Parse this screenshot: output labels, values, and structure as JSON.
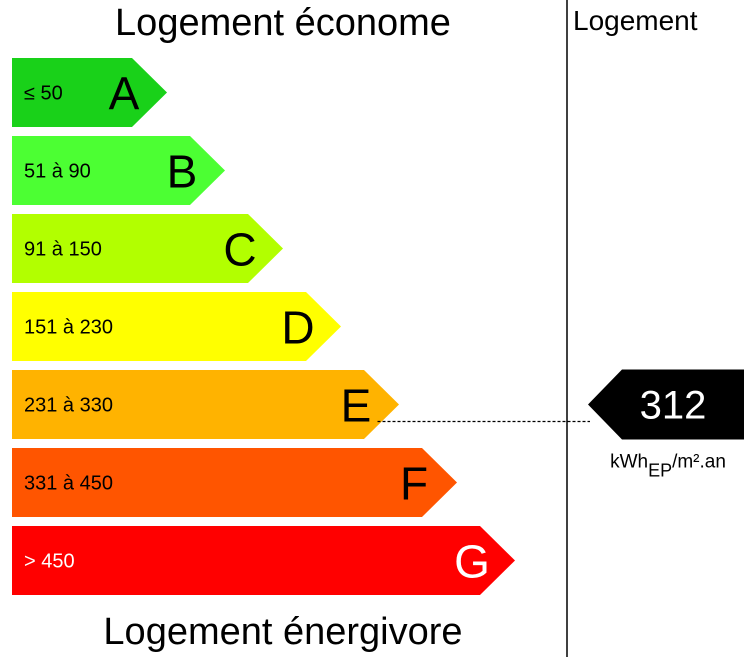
{
  "header": {
    "title_top": "Logement économe",
    "title_bottom": "Logement énergivore",
    "column_label": "Logement"
  },
  "rating": {
    "value": "312",
    "unit_prefix": "kWh",
    "unit_subscript": "EP",
    "unit_suffix": "/m².an",
    "class": "E"
  },
  "classes": [
    {
      "letter": "A",
      "range": "≤ 50",
      "color": "#19d119",
      "text_color": "#000000"
    },
    {
      "letter": "B",
      "range": "51 à 90",
      "color": "#4cff33",
      "text_color": "#000000"
    },
    {
      "letter": "C",
      "range": "91 à 150",
      "color": "#b2ff00",
      "text_color": "#000000"
    },
    {
      "letter": "D",
      "range": "151 à 230",
      "color": "#ffff00",
      "text_color": "#000000"
    },
    {
      "letter": "E",
      "range": "231 à 330",
      "color": "#ffb300",
      "text_color": "#000000"
    },
    {
      "letter": "F",
      "range": "331 à 450",
      "color": "#ff5500",
      "text_color": "#000000"
    },
    {
      "letter": "G",
      "range": "> 450",
      "color": "#ff0000",
      "text_color": "#ffffff"
    }
  ],
  "colors": {
    "marker": "#000000",
    "marker_text": "#ffffff",
    "divider": "#000000"
  }
}
